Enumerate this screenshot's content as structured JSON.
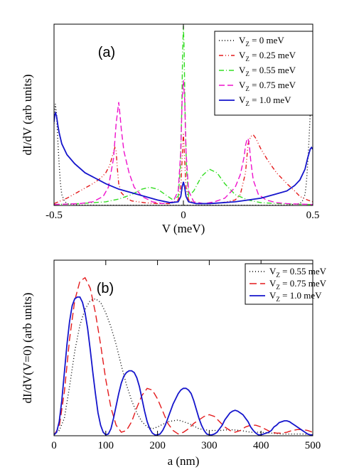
{
  "chart_data": [
    {
      "type": "line",
      "panel_label": "(a)",
      "xlabel": "V (meV)",
      "ylabel": "dI/dV (arb units)",
      "xlim": [
        -0.5,
        0.5
      ],
      "ylim": [
        0,
        1.0
      ],
      "x_ticks": [
        -0.5,
        0,
        0.5
      ],
      "x_tick_labels": [
        "-0.5",
        "0",
        "0.5"
      ],
      "legend_position": "top-right",
      "series": [
        {
          "name": "V_Z = 0 meV",
          "legend_main": "V",
          "legend_sub": "Z",
          "legend_rest": " = 0 meV",
          "color": "#000000",
          "dash": "1,3",
          "x": [
            -0.5,
            -0.495,
            -0.49,
            -0.485,
            -0.48,
            -0.475,
            -0.47,
            -0.46,
            -0.45,
            -0.4,
            -0.3,
            -0.2,
            -0.1,
            0,
            0.1,
            0.2,
            0.3,
            0.4,
            0.45,
            0.46,
            0.47,
            0.475,
            0.48,
            0.485,
            0.49,
            0.495,
            0.5
          ],
          "y": [
            0.45,
            0.56,
            0.5,
            0.35,
            0.22,
            0.12,
            0.06,
            0.025,
            0.01,
            0.002,
            0.001,
            0.001,
            0.001,
            0.001,
            0.001,
            0.001,
            0.001,
            0.002,
            0.01,
            0.025,
            0.06,
            0.12,
            0.22,
            0.35,
            0.5,
            0.65,
            0.78
          ]
        },
        {
          "name": "V_Z = 0.25 meV",
          "legend_main": "V",
          "legend_sub": "Z",
          "legend_rest": " = 0.25 meV",
          "color": "#e41a1c",
          "dash": "6,3,1,3,1,3",
          "x": [
            -0.5,
            -0.45,
            -0.4,
            -0.35,
            -0.32,
            -0.3,
            -0.285,
            -0.275,
            -0.265,
            -0.26,
            -0.255,
            -0.25,
            -0.24,
            -0.22,
            -0.2,
            -0.15,
            -0.1,
            -0.05,
            -0.02,
            -0.01,
            -0.005,
            0,
            0.005,
            0.01,
            0.02,
            0.05,
            0.1,
            0.15,
            0.2,
            0.22,
            0.24,
            0.25,
            0.26,
            0.27,
            0.28,
            0.3,
            0.33,
            0.36,
            0.4,
            0.43,
            0.45,
            0.48,
            0.5
          ],
          "y": [
            0.01,
            0.04,
            0.08,
            0.12,
            0.15,
            0.18,
            0.22,
            0.27,
            0.32,
            0.3,
            0.2,
            0.12,
            0.07,
            0.04,
            0.025,
            0.015,
            0.01,
            0.01,
            0.03,
            0.1,
            0.25,
            0.4,
            0.25,
            0.1,
            0.03,
            0.01,
            0.01,
            0.015,
            0.03,
            0.06,
            0.18,
            0.34,
            0.38,
            0.39,
            0.37,
            0.31,
            0.24,
            0.18,
            0.12,
            0.08,
            0.05,
            0.03,
            0.02
          ]
        },
        {
          "name": "V_Z = 0.55 meV",
          "legend_main": "V",
          "legend_sub": "Z",
          "legend_rest": " = 0.55 meV",
          "color": "#33dd22",
          "dash": "7,3,1,3",
          "x": [
            -0.5,
            -0.4,
            -0.3,
            -0.25,
            -0.2,
            -0.16,
            -0.13,
            -0.1,
            -0.07,
            -0.04,
            -0.02,
            -0.012,
            -0.006,
            -0.003,
            0,
            0.003,
            0.006,
            0.012,
            0.02,
            0.04,
            0.07,
            0.1,
            0.13,
            0.16,
            0.2,
            0.25,
            0.3,
            0.4,
            0.5
          ],
          "y": [
            0.005,
            0.01,
            0.02,
            0.035,
            0.06,
            0.09,
            0.1,
            0.09,
            0.06,
            0.03,
            0.05,
            0.2,
            0.55,
            0.85,
            0.99,
            0.85,
            0.55,
            0.2,
            0.05,
            0.08,
            0.16,
            0.2,
            0.18,
            0.12,
            0.06,
            0.03,
            0.015,
            0.008,
            0.005
          ]
        },
        {
          "name": "V_Z = 0.75 meV",
          "legend_main": "V",
          "legend_sub": "Z",
          "legend_rest": " = 0.75 meV",
          "color": "#ee11cc",
          "dash": "8,4",
          "x": [
            -0.5,
            -0.4,
            -0.35,
            -0.31,
            -0.29,
            -0.27,
            -0.26,
            -0.25,
            -0.245,
            -0.24,
            -0.23,
            -0.21,
            -0.19,
            -0.16,
            -0.12,
            -0.08,
            -0.04,
            -0.02,
            -0.01,
            -0.005,
            0,
            0.005,
            0.01,
            0.02,
            0.04,
            0.08,
            0.12,
            0.16,
            0.2,
            0.22,
            0.235,
            0.24,
            0.245,
            0.25,
            0.255,
            0.26,
            0.27,
            0.29,
            0.32,
            0.36,
            0.4,
            0.5
          ],
          "y": [
            0.005,
            0.01,
            0.02,
            0.05,
            0.1,
            0.26,
            0.45,
            0.57,
            0.5,
            0.42,
            0.3,
            0.18,
            0.1,
            0.05,
            0.02,
            0.01,
            0.02,
            0.08,
            0.3,
            0.58,
            0.69,
            0.58,
            0.3,
            0.08,
            0.02,
            0.01,
            0.02,
            0.04,
            0.1,
            0.17,
            0.27,
            0.33,
            0.36,
            0.37,
            0.33,
            0.25,
            0.14,
            0.06,
            0.03,
            0.015,
            0.01,
            0.005
          ]
        },
        {
          "name": "V_Z = 1.0 meV",
          "legend_main": "V",
          "legend_sub": "Z",
          "legend_rest": " = 1.0 meV",
          "color": "#1515cc",
          "dash": "",
          "x": [
            -0.5,
            -0.497,
            -0.494,
            -0.49,
            -0.485,
            -0.48,
            -0.47,
            -0.45,
            -0.42,
            -0.38,
            -0.34,
            -0.3,
            -0.25,
            -0.2,
            -0.15,
            -0.1,
            -0.05,
            -0.02,
            -0.01,
            -0.005,
            0,
            0.005,
            0.01,
            0.02,
            0.05,
            0.1,
            0.15,
            0.2,
            0.25,
            0.3,
            0.35,
            0.4,
            0.43,
            0.45,
            0.47,
            0.48,
            0.49,
            0.495,
            0.5
          ],
          "y": [
            0.46,
            0.5,
            0.51,
            0.49,
            0.44,
            0.4,
            0.34,
            0.28,
            0.23,
            0.18,
            0.15,
            0.12,
            0.09,
            0.07,
            0.05,
            0.03,
            0.015,
            0.02,
            0.05,
            0.1,
            0.13,
            0.1,
            0.05,
            0.02,
            0.01,
            0.01,
            0.015,
            0.02,
            0.03,
            0.04,
            0.06,
            0.08,
            0.11,
            0.14,
            0.2,
            0.26,
            0.31,
            0.32,
            0.31
          ]
        }
      ]
    },
    {
      "type": "line",
      "panel_label": "(b)",
      "xlabel": "a (nm)",
      "ylabel": "dI/dV(V=0) (arb units)",
      "xlim": [
        0,
        500
      ],
      "ylim": [
        0,
        1.0
      ],
      "x_ticks": [
        0,
        100,
        200,
        300,
        400,
        500
      ],
      "x_tick_labels": [
        "0",
        "100",
        "200",
        "300",
        "400",
        "500"
      ],
      "legend_position": "top-right",
      "series": [
        {
          "name": "V_Z = 0.55 meV",
          "legend_main": "V",
          "legend_sub": "Z",
          "legend_rest": " = 0.55 meV",
          "color": "#000000",
          "dash": "1,3",
          "x": [
            0,
            10,
            20,
            30,
            40,
            50,
            60,
            70,
            80,
            90,
            100,
            110,
            120,
            130,
            140,
            150,
            160,
            170,
            180,
            190,
            200,
            220,
            240,
            260,
            280,
            300,
            320,
            340,
            360,
            380,
            400,
            420,
            440,
            460,
            480,
            500
          ],
          "y": [
            0.01,
            0.03,
            0.1,
            0.28,
            0.48,
            0.63,
            0.72,
            0.77,
            0.78,
            0.76,
            0.7,
            0.62,
            0.52,
            0.4,
            0.29,
            0.2,
            0.13,
            0.08,
            0.05,
            0.04,
            0.05,
            0.08,
            0.09,
            0.07,
            0.04,
            0.03,
            0.03,
            0.035,
            0.03,
            0.02,
            0.02,
            0.015,
            0.01,
            0.01,
            0.01,
            0.005
          ]
        },
        {
          "name": "V_Z = 0.75 meV",
          "legend_main": "V",
          "legend_sub": "Z",
          "legend_rest": " = 0.75 meV",
          "color": "#e41a1c",
          "dash": "10,5",
          "x": [
            0,
            10,
            20,
            30,
            40,
            50,
            60,
            70,
            80,
            90,
            100,
            110,
            120,
            130,
            140,
            150,
            160,
            170,
            180,
            190,
            200,
            210,
            220,
            230,
            240,
            250,
            260,
            270,
            280,
            290,
            300,
            310,
            320,
            330,
            340,
            350,
            360,
            370,
            380,
            390,
            400,
            410,
            420,
            430,
            440,
            450,
            460,
            470,
            480,
            490,
            500
          ],
          "y": [
            0.005,
            0.05,
            0.25,
            0.55,
            0.77,
            0.88,
            0.9,
            0.84,
            0.7,
            0.52,
            0.32,
            0.16,
            0.06,
            0.02,
            0.03,
            0.08,
            0.16,
            0.23,
            0.27,
            0.26,
            0.21,
            0.14,
            0.07,
            0.03,
            0.01,
            0.02,
            0.04,
            0.07,
            0.09,
            0.11,
            0.12,
            0.11,
            0.08,
            0.05,
            0.03,
            0.02,
            0.03,
            0.05,
            0.06,
            0.06,
            0.05,
            0.035,
            0.02,
            0.015,
            0.015,
            0.02,
            0.03,
            0.035,
            0.035,
            0.03,
            0.02
          ]
        },
        {
          "name": "V_Z = 1.0 meV",
          "legend_main": "V",
          "legend_sub": "Z",
          "legend_rest": " = 1.0 meV",
          "color": "#1515cc",
          "dash": "",
          "x": [
            0,
            5,
            10,
            15,
            20,
            25,
            30,
            35,
            40,
            45,
            50,
            55,
            60,
            65,
            70,
            75,
            80,
            85,
            90,
            95,
            100,
            105,
            110,
            115,
            120,
            125,
            130,
            135,
            140,
            145,
            150,
            155,
            160,
            165,
            170,
            175,
            180,
            185,
            190,
            195,
            200,
            205,
            210,
            215,
            220,
            225,
            230,
            235,
            240,
            245,
            250,
            255,
            260,
            265,
            270,
            275,
            280,
            285,
            290,
            295,
            300,
            305,
            310,
            315,
            320,
            325,
            330,
            335,
            340,
            345,
            350,
            355,
            360,
            365,
            370,
            375,
            380,
            385,
            390,
            395,
            400,
            405,
            410,
            415,
            420,
            425,
            430,
            435,
            440,
            445,
            450,
            455,
            460,
            465,
            470,
            475,
            480,
            485,
            490,
            495,
            500
          ],
          "y": [
            0.005,
            0.02,
            0.08,
            0.2,
            0.36,
            0.52,
            0.65,
            0.74,
            0.78,
            0.79,
            0.79,
            0.76,
            0.7,
            0.61,
            0.49,
            0.36,
            0.24,
            0.13,
            0.06,
            0.02,
            0.005,
            0.01,
            0.04,
            0.1,
            0.17,
            0.24,
            0.3,
            0.34,
            0.36,
            0.37,
            0.37,
            0.36,
            0.33,
            0.28,
            0.21,
            0.14,
            0.08,
            0.04,
            0.015,
            0.005,
            0.005,
            0.01,
            0.03,
            0.06,
            0.1,
            0.14,
            0.18,
            0.21,
            0.24,
            0.26,
            0.27,
            0.27,
            0.26,
            0.24,
            0.2,
            0.15,
            0.1,
            0.06,
            0.03,
            0.01,
            0.005,
            0.005,
            0.01,
            0.02,
            0.04,
            0.06,
            0.09,
            0.11,
            0.13,
            0.14,
            0.145,
            0.14,
            0.13,
            0.12,
            0.1,
            0.08,
            0.05,
            0.03,
            0.015,
            0.005,
            0.005,
            0.01,
            0.015,
            0.02,
            0.03,
            0.05,
            0.06,
            0.075,
            0.08,
            0.085,
            0.085,
            0.08,
            0.07,
            0.06,
            0.05,
            0.04,
            0.03,
            0.02,
            0.01,
            0.005,
            0.005
          ]
        }
      ]
    }
  ]
}
